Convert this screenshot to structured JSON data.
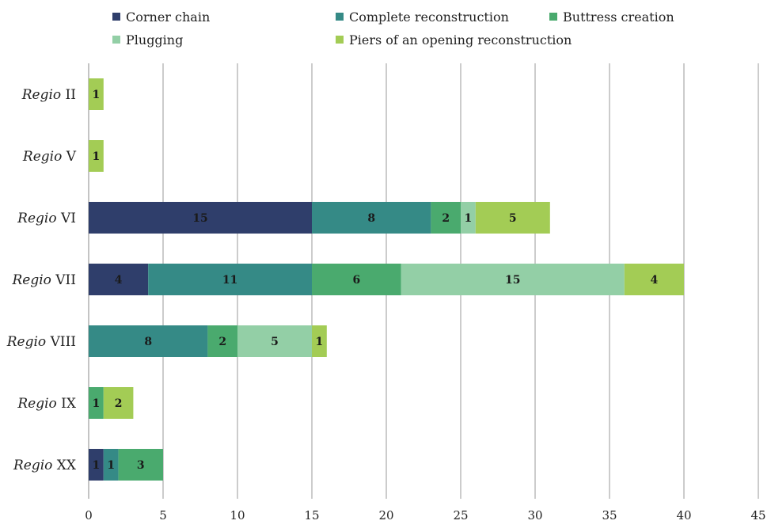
{
  "chart_data": {
    "type": "bar",
    "orientation": "horizontal",
    "stacked": true,
    "categories": [
      {
        "italic": "Regio",
        "rest": "II"
      },
      {
        "italic": "Regio",
        "rest": "V"
      },
      {
        "italic": "Regio",
        "rest": "VI"
      },
      {
        "italic": "Regio",
        "rest": "VII"
      },
      {
        "italic": "Regio",
        "rest": "VIII"
      },
      {
        "italic": "Regio",
        "rest": "IX"
      },
      {
        "italic": "Regio",
        "rest": "XX"
      }
    ],
    "series": [
      {
        "name": "Corner chain",
        "color": "#2f3e6b",
        "values": [
          0,
          0,
          15,
          4,
          0,
          0,
          1
        ]
      },
      {
        "name": "Complete reconstruction",
        "color": "#358a86",
        "values": [
          0,
          0,
          8,
          11,
          8,
          0,
          1
        ]
      },
      {
        "name": "Buttress creation",
        "color": "#4aaa6e",
        "values": [
          0,
          0,
          2,
          6,
          2,
          1,
          3
        ]
      },
      {
        "name": "Plugging",
        "color": "#93cfa6",
        "values": [
          0,
          0,
          1,
          15,
          5,
          0,
          0
        ]
      },
      {
        "name": "Piers of an opening reconstruction",
        "color": "#a3cc55",
        "values": [
          1,
          1,
          5,
          4,
          1,
          2,
          0
        ]
      }
    ],
    "xlim": [
      0,
      45
    ],
    "xticks": [
      0,
      5,
      10,
      15,
      20,
      25,
      30,
      35,
      40,
      45
    ],
    "grid": true,
    "legend_position": "top",
    "title": "",
    "xlabel": "",
    "ylabel": ""
  }
}
